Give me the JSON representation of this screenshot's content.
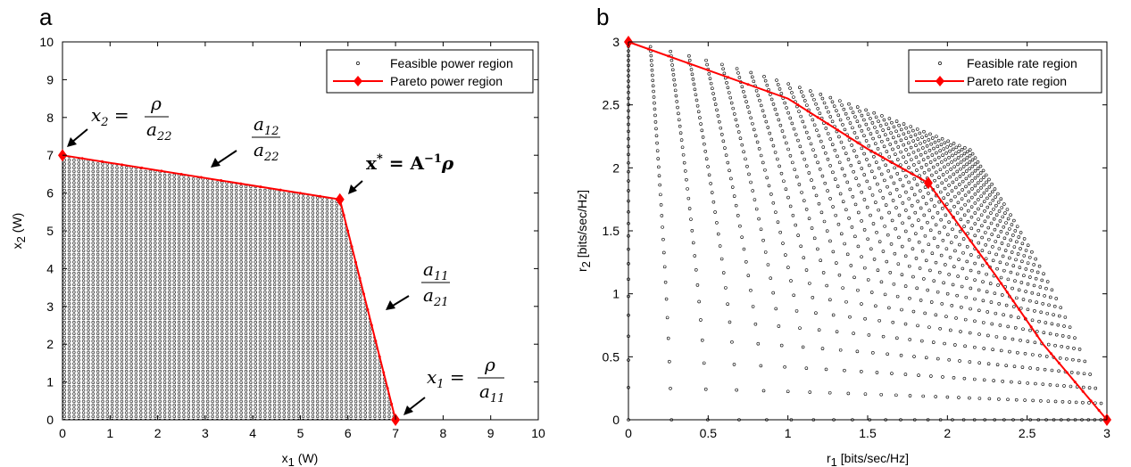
{
  "figure": {
    "panel_a_label": "a",
    "panel_b_label": "b"
  },
  "chart_data": [
    {
      "id": "a",
      "type": "scatter",
      "xlabel": "x",
      "xlabel_sub": "1",
      "xlabel_unit": " (W)",
      "ylabel": "x",
      "ylabel_sub": "2",
      "ylabel_unit": " (W)",
      "xlim": [
        0,
        10
      ],
      "ylim": [
        0,
        10
      ],
      "xticks": [
        "0",
        "1",
        "2",
        "3",
        "4",
        "5",
        "6",
        "7",
        "8",
        "9",
        "10"
      ],
      "yticks": [
        "0",
        "1",
        "2",
        "3",
        "4",
        "5",
        "6",
        "7",
        "8",
        "9",
        "10"
      ],
      "grid": false,
      "legend_position": "top-right",
      "legend": [
        "Feasible power region",
        "Pareto power region"
      ],
      "pareto_vertices": [
        [
          0,
          7.0
        ],
        [
          5.83,
          5.83
        ],
        [
          7.0,
          0
        ]
      ],
      "feasible_grid_step_x": 0.1,
      "feasible_grid_step_y": 0.1,
      "annotations": {
        "a1": {
          "lhs": "x",
          "lhs_sub": "2",
          "eq": " = ",
          "num": "ρ",
          "den": "a",
          "den_sub": "22"
        },
        "a2": {
          "num": "a",
          "num_sub": "12",
          "den": "a",
          "den_sub": "22"
        },
        "a3": {
          "bold_x": "x",
          "sup": "*",
          "eq": " = ",
          "bold_A": "A",
          "sup2": "−1",
          "rho": "ρ"
        },
        "a4": {
          "num": "a",
          "num_sub": "11",
          "den": "a",
          "den_sub": "21"
        },
        "a5": {
          "lhs": "x",
          "lhs_sub": "1",
          "eq": " = ",
          "num": "ρ",
          "den": "a",
          "den_sub": "11"
        }
      }
    },
    {
      "id": "b",
      "type": "scatter",
      "xlabel": "r",
      "xlabel_sub": "1",
      "xlabel_unit": " [bits/sec/Hz]",
      "ylabel": "r",
      "ylabel_sub": "2",
      "ylabel_unit": " [bits/sec/Hz]",
      "xlim": [
        0,
        3
      ],
      "ylim": [
        0,
        3
      ],
      "xticks": [
        "0",
        "0.5",
        "1",
        "1.5",
        "2",
        "2.5",
        "3"
      ],
      "yticks": [
        "0",
        "0.5",
        "1",
        "1.5",
        "2",
        "2.5",
        "3"
      ],
      "grid": false,
      "legend_position": "top-right",
      "legend": [
        "Feasible rate region",
        "Pareto rate region"
      ],
      "pareto_vertices": [
        [
          0,
          3.0
        ],
        [
          1.0,
          2.55
        ],
        [
          1.5,
          2.15
        ],
        [
          1.88,
          1.88
        ],
        [
          2.3,
          1.15
        ],
        [
          2.6,
          0.6
        ],
        [
          3.0,
          0
        ]
      ],
      "marked_points": [
        [
          0,
          3.0
        ],
        [
          1.88,
          1.88
        ],
        [
          3.0,
          0
        ]
      ]
    }
  ]
}
